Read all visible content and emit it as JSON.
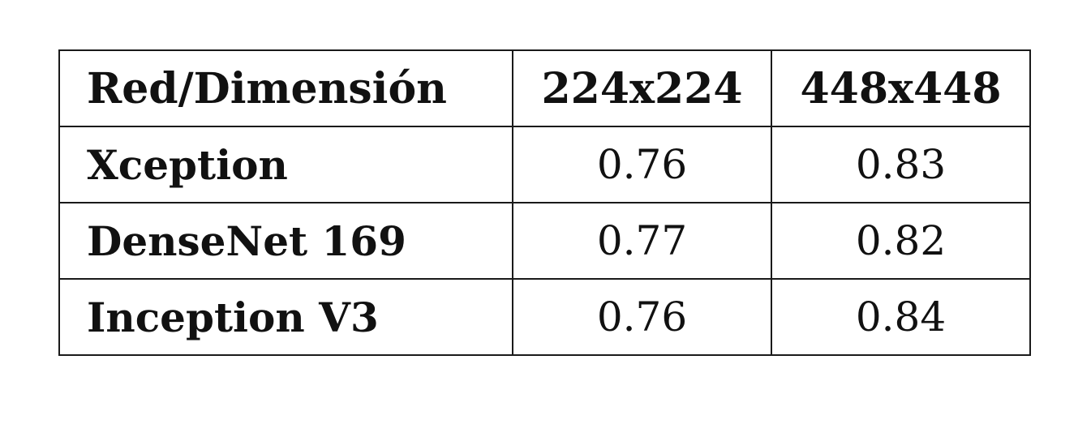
{
  "table": {
    "headers": [
      "Red/Dimensión",
      "224x224",
      "448x448"
    ],
    "rows": [
      {
        "name": "Xception",
        "values": [
          "0.76",
          "0.83"
        ]
      },
      {
        "name": "DenseNet 169",
        "values": [
          "0.77",
          "0.82"
        ]
      },
      {
        "name": "Inception V3",
        "values": [
          "0.76",
          "0.84"
        ]
      }
    ]
  }
}
